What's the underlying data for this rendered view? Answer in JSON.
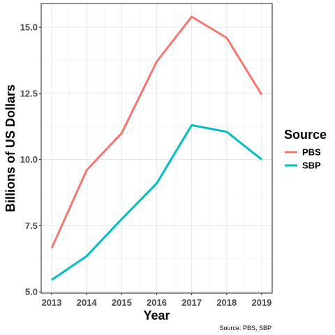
{
  "chart_data": {
    "type": "line",
    "x": [
      2013,
      2014,
      2015,
      2016,
      2017,
      2018,
      2019
    ],
    "series": [
      {
        "name": "PBS",
        "color": "#F8766D",
        "values": [
          6.65,
          9.6,
          11.0,
          13.7,
          15.4,
          14.6,
          12.45
        ]
      },
      {
        "name": "SBP",
        "color": "#00BFC4",
        "values": [
          5.45,
          6.35,
          7.75,
          9.1,
          11.3,
          11.05,
          10.0
        ]
      }
    ],
    "xlabel": "Year",
    "ylabel": "Billions of US Dollars",
    "ylim": [
      4.95,
      15.9
    ],
    "xlim": [
      2012.7,
      2019.3
    ],
    "y_ticks": [
      "5.0",
      "7.5",
      "10.0",
      "12.5",
      "15.0"
    ],
    "x_ticks": [
      "2013",
      "2014",
      "2015",
      "2016",
      "2017",
      "2018",
      "2019"
    ],
    "legend": {
      "title": "Source",
      "position": "right"
    },
    "caption": "Source: PBS, SBP",
    "grid": true
  }
}
